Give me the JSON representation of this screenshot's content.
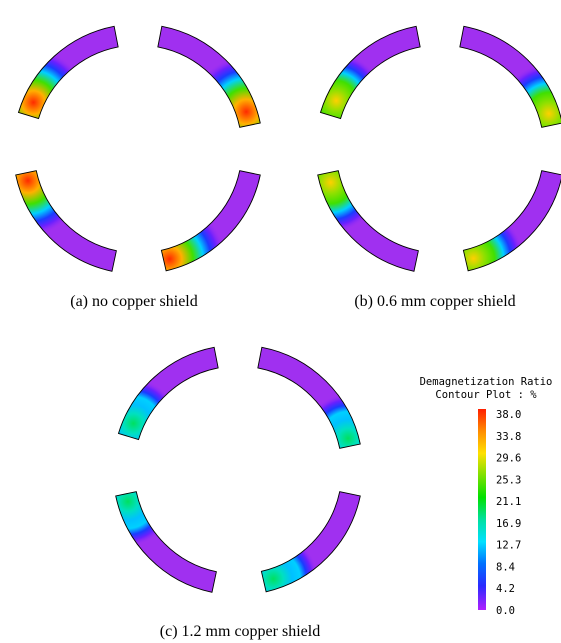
{
  "captions": {
    "a": "(a) no copper shield",
    "b": "(b) 0.6 mm copper shield",
    "c": "(c) 1.2 mm copper shield"
  },
  "legend": {
    "title_line1": "Demagnetization Ratio",
    "title_line2": "Contour Plot : %",
    "ticks": [
      "38.0",
      "33.8",
      "29.6",
      "25.3",
      "21.1",
      "16.9",
      "12.7",
      "8.4",
      "4.2",
      "0.0"
    ],
    "colormap": [
      "#ff1e00",
      "#ff8c00",
      "#ffe000",
      "#7ee000",
      "#00e000",
      "#00e0a0",
      "#00e0ff",
      "#0070ff",
      "#2a2aff",
      "#b020ff"
    ]
  },
  "colors": {
    "magnet_base": "#a030f0",
    "outline": "#000000"
  }
}
